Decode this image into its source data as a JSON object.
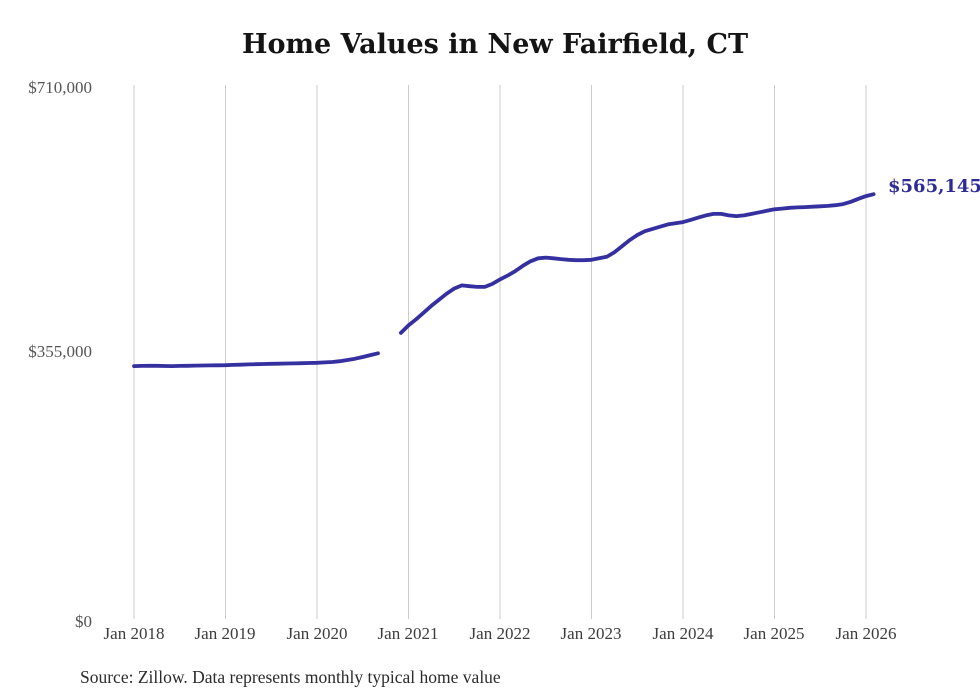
{
  "title": "Home Values in New Fairfield, CT",
  "source_note": "Source: Zillow. Data represents monthly typical home value",
  "end_label": "$565,145",
  "colors": {
    "line": "#35309f",
    "end_label": "#2e2b96",
    "grid": "#cccccc",
    "y_tick_text": "#555555",
    "x_tick_text": "#3c3c3c",
    "title_text": "#141414",
    "source_text": "#2b2b2b",
    "background": "#ffffff"
  },
  "chart_data": {
    "type": "line",
    "title": "Home Values in New Fairfield, CT",
    "series_name": "Monthly typical home value (Zillow)",
    "frequency": "monthly",
    "x_start": "2018-01",
    "x_end": "2026-02",
    "x_tick_labels": [
      "Jan 2018",
      "Jan 2019",
      "Jan 2020",
      "Jan 2021",
      "Jan 2022",
      "Jan 2023",
      "Jan 2024",
      "Jan 2025",
      "Jan 2026"
    ],
    "y_tick_labels": [
      "$710,000",
      "$355,000",
      "$0"
    ],
    "ylim": [
      0,
      710000
    ],
    "grid": "vertical-only",
    "legend": "none",
    "gap_months": [
      "2020-10",
      "2020-11"
    ],
    "latest_value": 565145,
    "values": [
      337000,
      337200,
      337400,
      337300,
      337100,
      337000,
      337200,
      337400,
      337600,
      337800,
      337900,
      338000,
      338200,
      338500,
      338800,
      339200,
      339500,
      339800,
      340000,
      340200,
      340400,
      340600,
      340800,
      341000,
      341300,
      341800,
      342400,
      343500,
      345000,
      346800,
      349000,
      351500,
      354000,
      null,
      null,
      381000,
      391000,
      399000,
      408000,
      417000,
      425000,
      433000,
      440000,
      444000,
      443000,
      442000,
      442000,
      446000,
      452000,
      457000,
      463000,
      470000,
      476000,
      480000,
      481000,
      480000,
      479000,
      478000,
      477500,
      477500,
      478000,
      480000,
      482000,
      488000,
      496000,
      504000,
      511000,
      516000,
      519000,
      522000,
      525000,
      526500,
      528000,
      531000,
      534000,
      537000,
      539000,
      539000,
      537000,
      536000,
      537000,
      539000,
      541000,
      543000,
      545000,
      546000,
      547000,
      547500,
      548000,
      548500,
      549000,
      549500,
      550500,
      552000,
      555000,
      559000,
      562500,
      565145
    ]
  }
}
